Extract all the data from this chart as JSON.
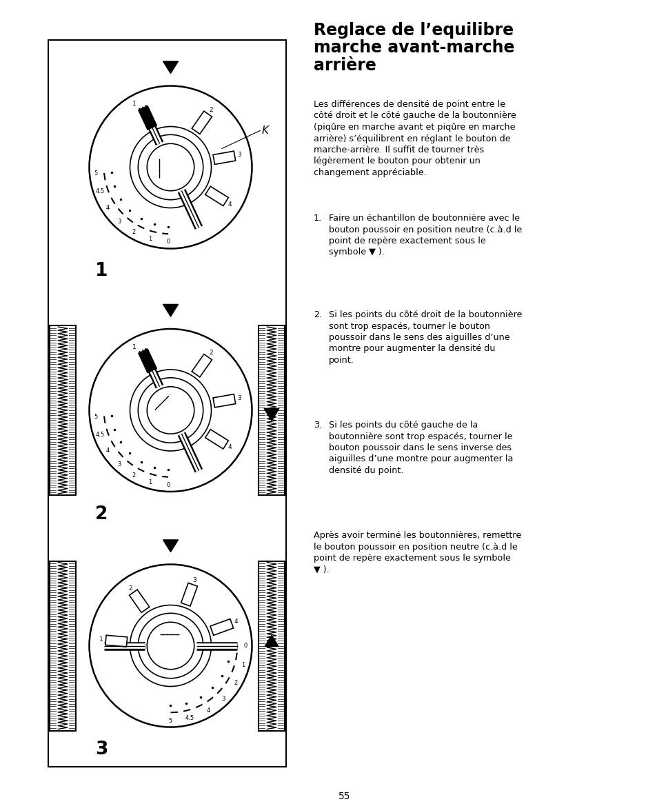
{
  "title_line1": "Reglace de l’equilibre",
  "title_line2": "marche avant-marche",
  "title_line3": "arrière",
  "paragraph1": "Les différences de densité de point entre le\ncôté droit et le côté gauche de la boutonnière\n(piqûre en marche avant et piqûre en marche\narrière) s’équilibrent en réglant le bouton de\nmarche-arrière. Il suffit de tourner très\nlégèrement le bouton pour obtenir un\nchangement appréciable.",
  "item1_num": "1.",
  "item1_text": "Faire un échantillon de boutonnière avec le\nbouton poussoir en position neutre (c.à.d le\npoint de repère exactement sous le\nsymbole ▼ ).",
  "item2_num": "2.",
  "item2_text": "Si les points du côté droit de la boutonnière\nsont trop espacés, tourner le bouton\npoussoir dans le sens des aiguilles d’une\nmontre pour augmenter la densité du\npoint.",
  "item3_num": "3.",
  "item3_text": "Si les points du côté gauche de la\nboutonnière sont trop espacés, tourner le\nbouton poussoir dans le sens inverse des\naiguilles d’une montre pour augmenter la\ndensité du point.",
  "paragraph2": "Après avoir terminé les boutonnières, remettre\nle bouton poussoir en position neutre (c.à.d le\npoint de repère exactement sous le symbole\n▼ ).",
  "page_number": "55",
  "bg_color": "#ffffff",
  "text_color": "#000000"
}
